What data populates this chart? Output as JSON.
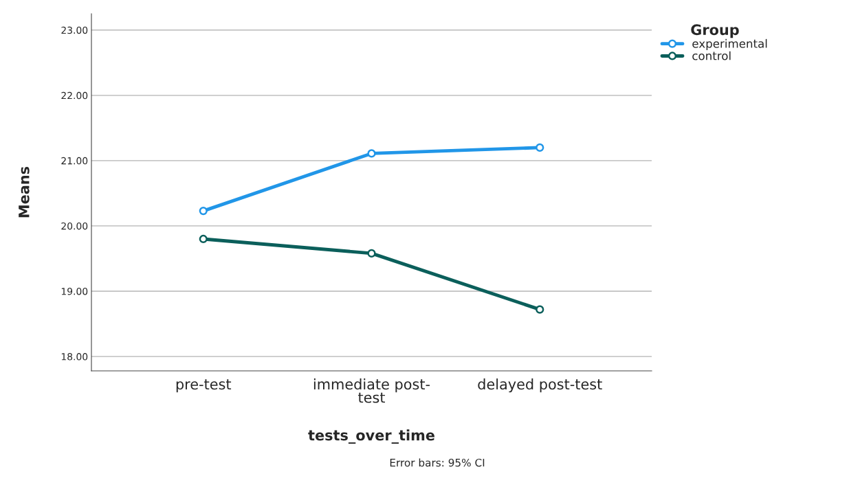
{
  "chart_data": {
    "type": "line",
    "xlabel": "tests_over_time",
    "ylabel": "Means",
    "legend_title": "Group",
    "categories": [
      "pre-test",
      "immediate post-\ntest",
      "delayed post-test"
    ],
    "series": [
      {
        "name": "experimental",
        "color": "#2196e8",
        "values": [
          20.23,
          21.11,
          21.2
        ]
      },
      {
        "name": "control",
        "color": "#0b5f5b",
        "values": [
          19.8,
          19.58,
          18.72
        ]
      }
    ],
    "ylim": [
      17.78,
      23.25
    ],
    "yticks": [
      {
        "value": 18,
        "label": "18.00"
      },
      {
        "value": 19,
        "label": "19.00"
      },
      {
        "value": 20,
        "label": "20.00"
      },
      {
        "value": 21,
        "label": "21.00"
      },
      {
        "value": 22,
        "label": "22.00"
      },
      {
        "value": 23,
        "label": "23.00"
      }
    ],
    "grid": "y",
    "legend": "top right",
    "marker": "circle",
    "line_style": "solid",
    "annotations": [
      "Error bars: 95% CI"
    ]
  }
}
